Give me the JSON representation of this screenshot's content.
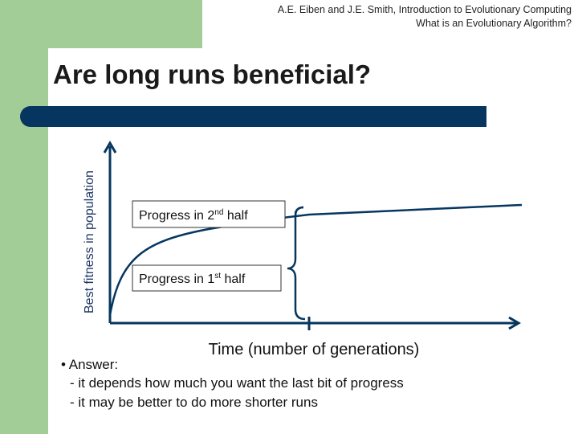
{
  "header": {
    "lines": [
      "A.E. Eiben and J.E. Smith, Introduction to Evolutionary Computing",
      "What is an Evolutionary Algorithm?"
    ]
  },
  "title": "Are long runs beneficial?",
  "axes": {
    "y_label": "Best fitness in population",
    "x_label": "Time (number of generations)"
  },
  "boxes": [
    {
      "main": "Progress in 2",
      "sup": "nd",
      "rest": " half"
    },
    {
      "main": "Progress in 1",
      "sup": "st",
      "rest": " half"
    }
  ],
  "answer": {
    "bullet": "• Answer:",
    "lines": [
      "- it depends how much you want the last bit of progress",
      "- it may be better to do more shorter runs"
    ]
  }
}
